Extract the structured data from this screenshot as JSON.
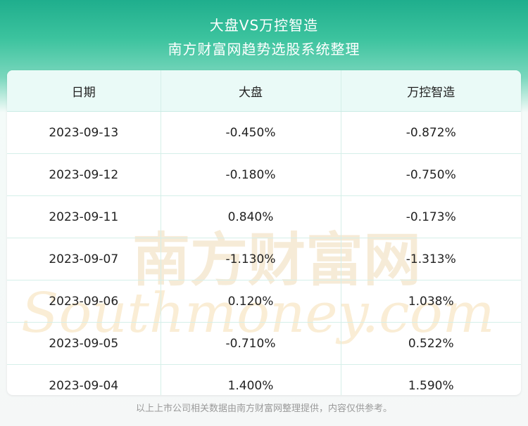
{
  "header": {
    "title": "大盘VS万控智造",
    "subtitle": "南方财富网趋势选股系统整理"
  },
  "chart_data": {
    "type": "table",
    "columns": [
      "日期",
      "大盘",
      "万控智造"
    ],
    "rows": [
      [
        "2023-09-13",
        "-0.450%",
        "-0.872%"
      ],
      [
        "2023-09-12",
        "-0.180%",
        "-0.750%"
      ],
      [
        "2023-09-11",
        "0.840%",
        "-0.173%"
      ],
      [
        "2023-09-07",
        "-1.130%",
        "-1.313%"
      ],
      [
        "2023-09-06",
        "0.120%",
        "1.038%"
      ],
      [
        "2023-09-05",
        "-0.710%",
        "0.522%"
      ],
      [
        "2023-09-04",
        "1.400%",
        "1.590%"
      ]
    ]
  },
  "watermark": {
    "cn": "南方财富网",
    "en": "Southmoney.com"
  },
  "footer": {
    "text": "以上上市公司相关数据由南方财富网整理提供，内容仅供参考。"
  },
  "colors": {
    "header_bg": "#1fae8d",
    "table_header_bg": "#eafaf7",
    "watermark": "#f3d9a8"
  }
}
